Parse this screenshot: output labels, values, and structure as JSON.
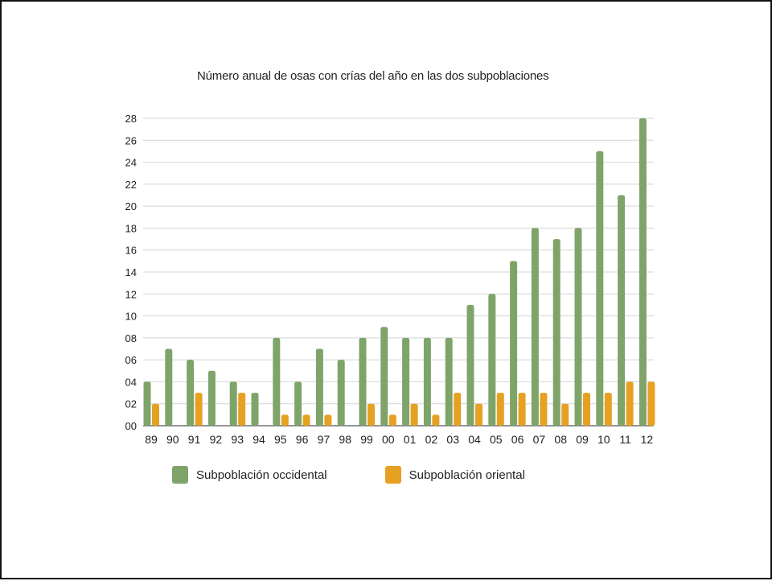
{
  "chart_data": {
    "type": "bar",
    "title": "Número anual de osas con crías del año en las dos subpoblaciones",
    "xlabel": "",
    "ylabel": "",
    "categories": [
      "89",
      "90",
      "91",
      "92",
      "93",
      "94",
      "95",
      "96",
      "97",
      "98",
      "99",
      "00",
      "01",
      "02",
      "03",
      "04",
      "05",
      "06",
      "07",
      "08",
      "09",
      "10",
      "11",
      "12"
    ],
    "series": [
      {
        "name": "Subpoblación occidental",
        "color": "#7FA46A",
        "values": [
          4,
          7,
          6,
          5,
          4,
          3,
          8,
          4,
          7,
          6,
          8,
          9,
          8,
          8,
          8,
          11,
          12,
          15,
          18,
          17,
          18,
          25,
          21,
          28
        ]
      },
      {
        "name": "Subpoblación oriental",
        "color": "#E6A123",
        "values": [
          2,
          0,
          3,
          0,
          3,
          0,
          1,
          1,
          1,
          0,
          2,
          1,
          2,
          1,
          3,
          2,
          3,
          3,
          3,
          2,
          3,
          3,
          4,
          4
        ]
      }
    ],
    "ylim": [
      0,
      28
    ],
    "yticks": [
      "00",
      "02",
      "04",
      "06",
      "08",
      "10",
      "12",
      "14",
      "16",
      "18",
      "20",
      "22",
      "24",
      "26",
      "28"
    ],
    "grid": true,
    "legend_position": "bottom"
  }
}
